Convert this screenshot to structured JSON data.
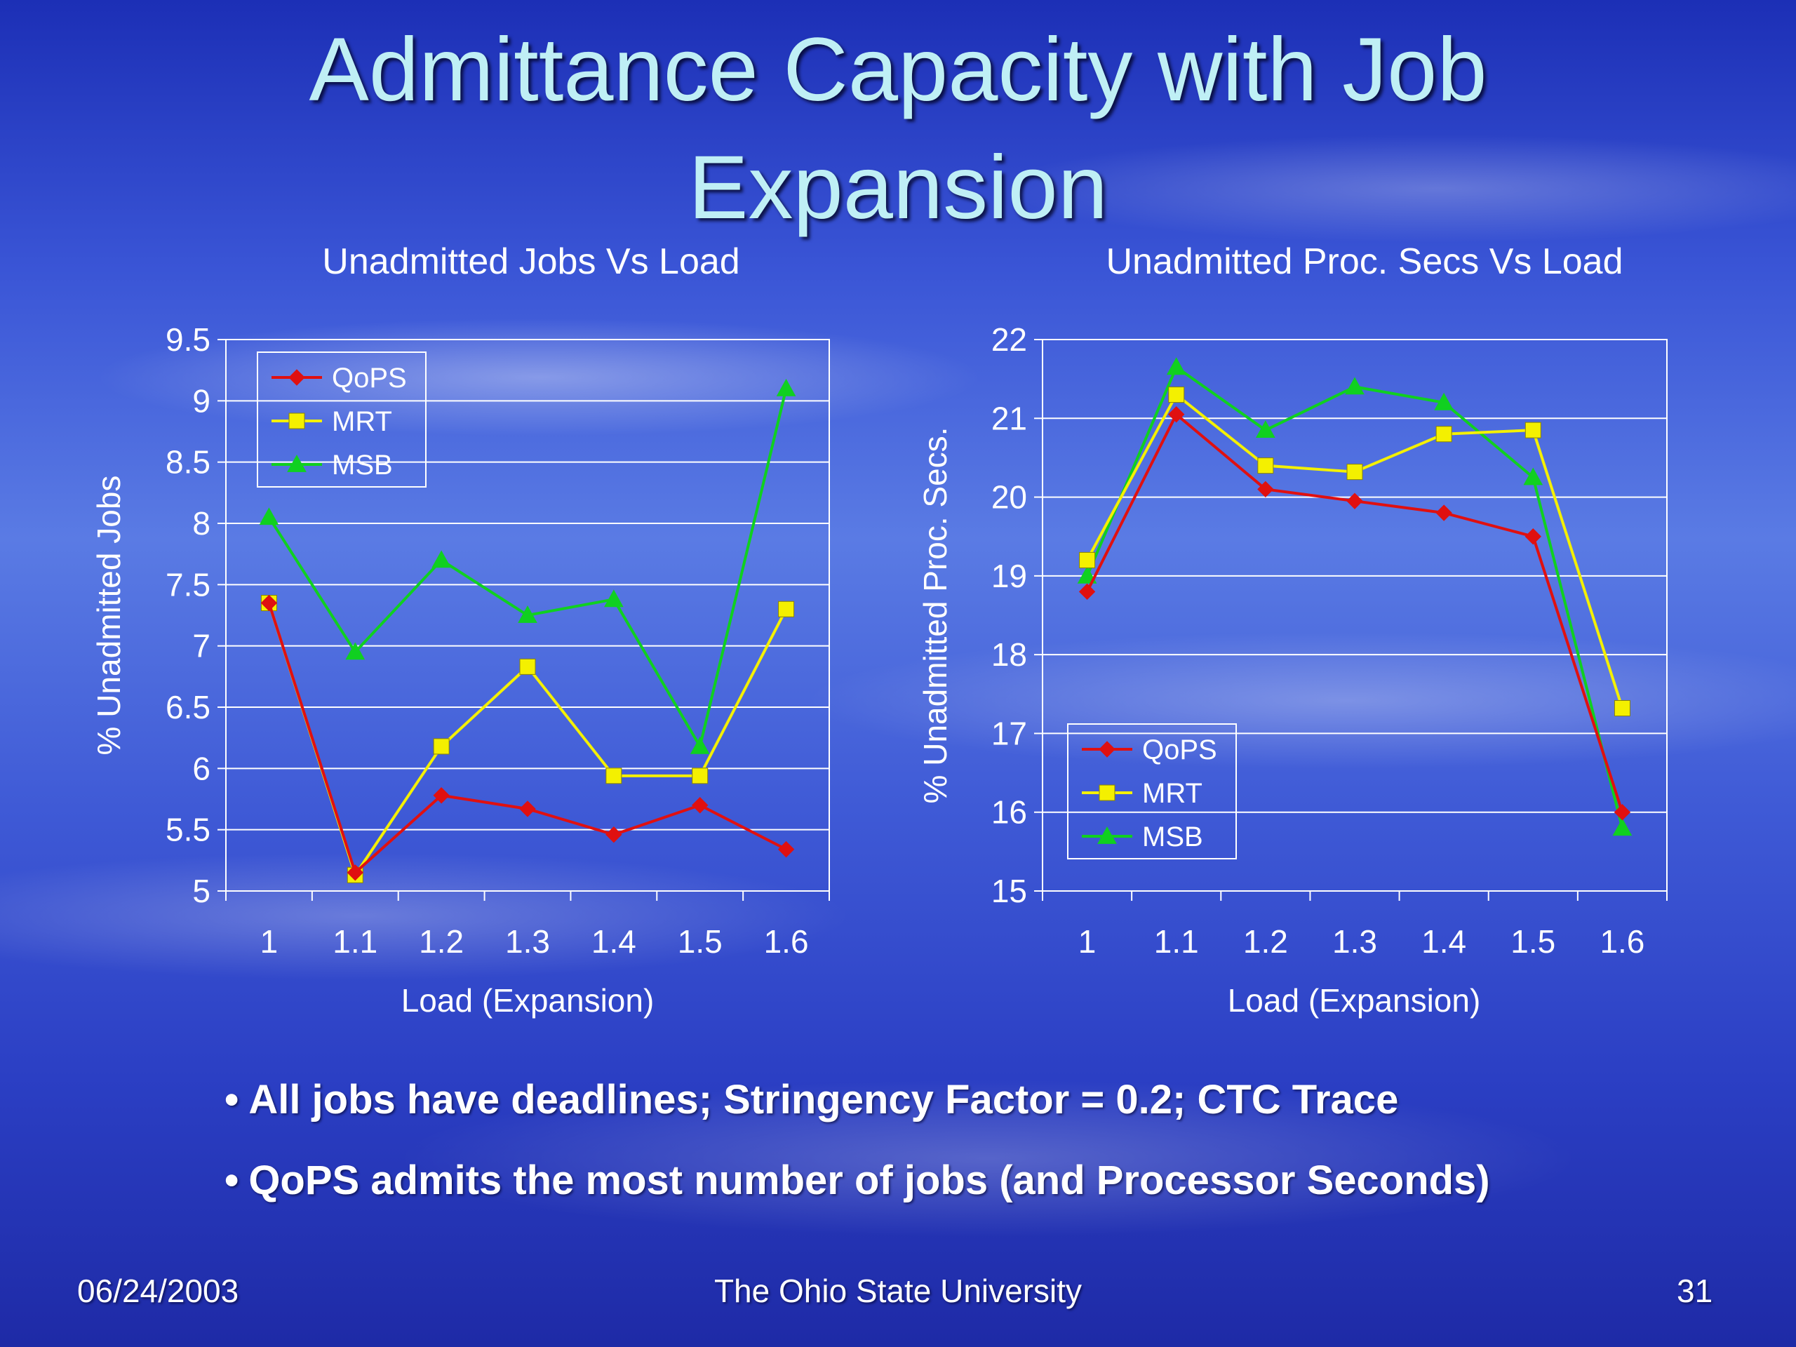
{
  "slide": {
    "title_line1": "Admittance Capacity with Job",
    "title_line2": "Expansion",
    "bullets": [
      "All jobs have deadlines; Stringency Factor = 0.2; CTC Trace",
      "QoPS admits the most number of jobs (and Processor Seconds)"
    ],
    "footer_left": "06/24/2003",
    "footer_center": "The Ohio State University",
    "footer_right": "31"
  },
  "colors": {
    "QoPS": "#e01010",
    "MRT": "#f4f000",
    "MSB": "#10d020",
    "axis_text": "#ffffff",
    "grid": "#ffffff"
  },
  "chart_data": [
    {
      "type": "line",
      "title": "Unadmitted Jobs Vs Load",
      "xlabel": "Load (Expansion)",
      "ylabel": "% Unadmitted Jobs",
      "categories": [
        "1",
        "1.1",
        "1.2",
        "1.3",
        "1.4",
        "1.5",
        "1.6"
      ],
      "ylim": [
        5,
        9.5
      ],
      "yticks": [
        "5",
        "5.5",
        "6",
        "6.5",
        "7",
        "7.5",
        "8",
        "8.5",
        "9",
        "9.5"
      ],
      "grid": true,
      "legend": "top-left",
      "series": [
        {
          "name": "QoPS",
          "marker": "diamond",
          "values": [
            7.35,
            5.15,
            5.78,
            5.67,
            5.46,
            5.7,
            5.34
          ]
        },
        {
          "name": "MRT",
          "marker": "square",
          "values": [
            7.35,
            5.13,
            6.18,
            6.83,
            5.94,
            5.94,
            7.3
          ]
        },
        {
          "name": "MSB",
          "marker": "triangle",
          "values": [
            8.05,
            6.95,
            7.7,
            7.25,
            7.38,
            6.18,
            9.1
          ]
        }
      ]
    },
    {
      "type": "line",
      "title": "Unadmitted Proc. Secs Vs Load",
      "xlabel": "Load (Expansion)",
      "ylabel": "% Unadmitted Proc. Secs.",
      "categories": [
        "1",
        "1.1",
        "1.2",
        "1.3",
        "1.4",
        "1.5",
        "1.6"
      ],
      "ylim": [
        15,
        22
      ],
      "yticks": [
        "15",
        "16",
        "17",
        "18",
        "19",
        "20",
        "21",
        "22"
      ],
      "grid": true,
      "legend": "bottom-left",
      "series": [
        {
          "name": "QoPS",
          "marker": "diamond",
          "values": [
            18.8,
            21.05,
            20.1,
            19.95,
            19.8,
            19.5,
            16.0
          ]
        },
        {
          "name": "MRT",
          "marker": "square",
          "values": [
            19.2,
            21.3,
            20.4,
            20.32,
            20.8,
            20.85,
            17.32
          ]
        },
        {
          "name": "MSB",
          "marker": "triangle",
          "values": [
            19.0,
            21.65,
            20.85,
            21.4,
            21.2,
            20.25,
            15.8
          ]
        }
      ]
    }
  ]
}
